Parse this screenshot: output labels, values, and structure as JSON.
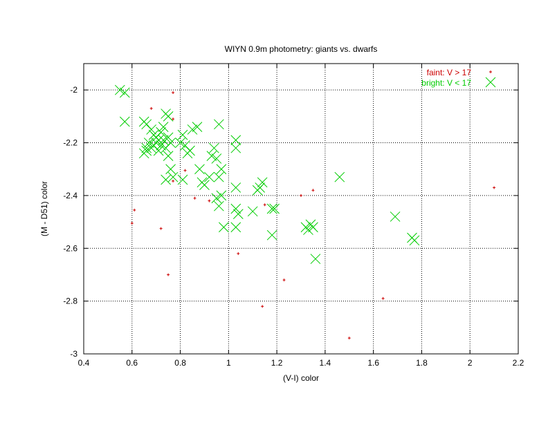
{
  "chart_data": {
    "type": "scatter",
    "title": "WIYN 0.9m photometry: giants vs. dwarfs",
    "xlabel": "(V-I) color",
    "ylabel": "(M - D51) color",
    "xlim": [
      0.4,
      2.2
    ],
    "ylim": [
      -3,
      -1.9
    ],
    "y_inverted": true,
    "x_ticks": [
      "0.4",
      "0.6",
      "0.8",
      "1",
      "1.2",
      "1.4",
      "1.6",
      "1.8",
      "2",
      "2.2"
    ],
    "y_ticks": [
      "-2",
      "-2.2",
      "-2.4",
      "-2.6",
      "-2.8",
      "-3"
    ],
    "grid": true,
    "legend_position": "top-right",
    "series": [
      {
        "name": "faint: V > 17",
        "color": "#cc0000",
        "marker": "plus",
        "points": [
          [
            0.77,
            -2.01
          ],
          [
            0.68,
            -2.07
          ],
          [
            0.77,
            -2.11
          ],
          [
            0.61,
            -2.455
          ],
          [
            0.6,
            -2.505
          ],
          [
            0.72,
            -2.525
          ],
          [
            0.77,
            -2.345
          ],
          [
            0.82,
            -2.305
          ],
          [
            0.86,
            -2.41
          ],
          [
            0.92,
            -2.42
          ],
          [
            0.75,
            -2.7
          ],
          [
            1.04,
            -2.62
          ],
          [
            1.15,
            -2.435
          ],
          [
            1.14,
            -2.82
          ],
          [
            1.23,
            -2.72
          ],
          [
            1.3,
            -2.4
          ],
          [
            1.35,
            -2.38
          ],
          [
            1.5,
            -2.94
          ],
          [
            1.64,
            -2.79
          ],
          [
            2.1,
            -2.37
          ]
        ]
      },
      {
        "name": "bright: V < 17",
        "color": "#00cc00",
        "marker": "cross",
        "points": [
          [
            0.55,
            -2.0
          ],
          [
            0.57,
            -2.01
          ],
          [
            0.57,
            -2.12
          ],
          [
            0.65,
            -2.12
          ],
          [
            0.66,
            -2.13
          ],
          [
            0.68,
            -2.15
          ],
          [
            0.69,
            -2.17
          ],
          [
            0.7,
            -2.18
          ],
          [
            0.71,
            -2.19
          ],
          [
            0.72,
            -2.16
          ],
          [
            0.73,
            -2.14
          ],
          [
            0.74,
            -2.09
          ],
          [
            0.75,
            -2.1
          ],
          [
            0.67,
            -2.2
          ],
          [
            0.68,
            -2.22
          ],
          [
            0.69,
            -2.21
          ],
          [
            0.7,
            -2.2
          ],
          [
            0.71,
            -2.23
          ],
          [
            0.72,
            -2.21
          ],
          [
            0.73,
            -2.19
          ],
          [
            0.74,
            -2.22
          ],
          [
            0.75,
            -2.18
          ],
          [
            0.76,
            -2.2
          ],
          [
            0.66,
            -2.22
          ],
          [
            0.65,
            -2.24
          ],
          [
            0.66,
            -2.23
          ],
          [
            0.75,
            -2.25
          ],
          [
            0.76,
            -2.3
          ],
          [
            0.77,
            -2.33
          ],
          [
            0.74,
            -2.34
          ],
          [
            0.8,
            -2.2
          ],
          [
            0.81,
            -2.17
          ],
          [
            0.82,
            -2.21
          ],
          [
            0.83,
            -2.24
          ],
          [
            0.84,
            -2.23
          ],
          [
            0.85,
            -2.15
          ],
          [
            0.87,
            -2.14
          ],
          [
            0.88,
            -2.3
          ],
          [
            0.89,
            -2.35
          ],
          [
            0.9,
            -2.36
          ],
          [
            0.92,
            -2.33
          ],
          [
            0.93,
            -2.25
          ],
          [
            0.94,
            -2.22
          ],
          [
            0.95,
            -2.26
          ],
          [
            0.96,
            -2.13
          ],
          [
            0.96,
            -2.33
          ],
          [
            0.97,
            -2.3
          ],
          [
            0.95,
            -2.41
          ],
          [
            0.96,
            -2.44
          ],
          [
            0.97,
            -2.4
          ],
          [
            0.98,
            -2.52
          ],
          [
            0.81,
            -2.34
          ],
          [
            1.03,
            -2.19
          ],
          [
            1.03,
            -2.22
          ],
          [
            1.03,
            -2.37
          ],
          [
            1.03,
            -2.45
          ],
          [
            1.04,
            -2.47
          ],
          [
            1.03,
            -2.52
          ],
          [
            1.1,
            -2.46
          ],
          [
            1.12,
            -2.38
          ],
          [
            1.13,
            -2.37
          ],
          [
            1.14,
            -2.35
          ],
          [
            1.18,
            -2.45
          ],
          [
            1.19,
            -2.45
          ],
          [
            1.18,
            -2.55
          ],
          [
            1.32,
            -2.52
          ],
          [
            1.33,
            -2.53
          ],
          [
            1.34,
            -2.51
          ],
          [
            1.35,
            -2.52
          ],
          [
            1.36,
            -2.64
          ],
          [
            1.46,
            -2.33
          ],
          [
            1.69,
            -2.48
          ],
          [
            1.76,
            -2.56
          ],
          [
            1.77,
            -2.57
          ]
        ]
      }
    ]
  }
}
